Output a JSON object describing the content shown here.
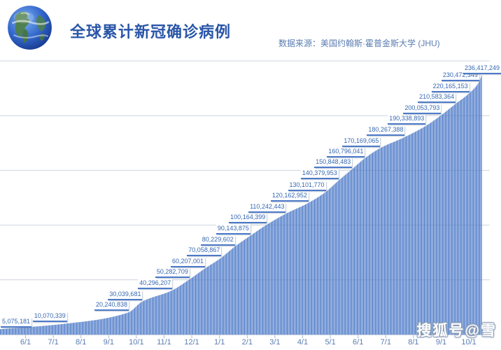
{
  "header": {
    "title": "全球累计新冠确诊病例",
    "source": "数据来源：美国约翰斯·霍普金斯大学 (JHU)",
    "logo": "earth-globe"
  },
  "watermark": {
    "text": "搜狐号@雪"
  },
  "colors": {
    "bar": "#4d7ac8",
    "grid": "#ccd4df",
    "tick": "#a9b9d2",
    "title": "#2a56a8",
    "source": "#5b7db1",
    "label": "#3567b2",
    "axis_label": "#5b7db1"
  },
  "chart_data": {
    "type": "bar",
    "title": "全球累计新冠确诊病例",
    "description": "Daily cumulative global confirmed COVID-19 cases, one thin bar per day, ~531 days from May 2020 to early October 2021",
    "x_tick_labels": [
      "6/1",
      "7/1",
      "8/1",
      "9/1",
      "10/1",
      "11/1",
      "12/1",
      "1/1",
      "2/1",
      "3/1",
      "4/1",
      "5/1",
      "6/1",
      "7/1",
      "8/1",
      "9/1",
      "10/1"
    ],
    "y_axis": {
      "min": 0,
      "max": 250000000,
      "gridline_step": 50000000,
      "labels_visible": false
    },
    "grid": "horizontal-only",
    "legend": "none",
    "n_days": 531,
    "origin_value": 4950000,
    "milestone_labels": [
      {
        "text": "5,075,181",
        "value": 5075181,
        "day": 2,
        "align": "left-edge"
      },
      {
        "text": "10,070,339",
        "value": 10070339,
        "day": 73
      },
      {
        "text": "20,240,838",
        "value": 20240838,
        "day": 141
      },
      {
        "text": "30,039,681",
        "value": 30039681,
        "day": 156
      },
      {
        "text": "40,296,207",
        "value": 40296207,
        "day": 189
      },
      {
        "text": "50,282,709",
        "value": 50282709,
        "day": 208
      },
      {
        "text": "60,207,001",
        "value": 60207001,
        "day": 225
      },
      {
        "text": "70,058,867",
        "value": 70058867,
        "day": 243
      },
      {
        "text": "80,229,602",
        "value": 80229602,
        "day": 258
      },
      {
        "text": "90,143,875",
        "value": 90143875,
        "day": 275
      },
      {
        "text": "100,164,399",
        "value": 100164399,
        "day": 293
      },
      {
        "text": "110,242,443",
        "value": 110242443,
        "day": 314
      },
      {
        "text": "120,162,952",
        "value": 120162952,
        "day": 339
      },
      {
        "text": "130,101,770",
        "value": 130101770,
        "day": 358
      },
      {
        "text": "140,379,953",
        "value": 140379953,
        "day": 372
      },
      {
        "text": "150,848,483",
        "value": 150848483,
        "day": 387
      },
      {
        "text": "160,796,041",
        "value": 160796041,
        "day": 401
      },
      {
        "text": "170,169,065",
        "value": 170169065,
        "day": 418
      },
      {
        "text": "180,267,388",
        "value": 180267388,
        "day": 445
      },
      {
        "text": "190,338,893",
        "value": 190338893,
        "day": 468
      },
      {
        "text": "200,053,793",
        "value": 200053793,
        "day": 485
      },
      {
        "text": "210,583,364",
        "value": 210583364,
        "day": 501
      },
      {
        "text": "220,165,153",
        "value": 220165153,
        "day": 516
      },
      {
        "text": "230,472,349",
        "value": 230472349,
        "day": 527
      },
      {
        "text": "236,417,249",
        "value": 236417249,
        "day": 530,
        "align": "overflow-right"
      }
    ]
  }
}
